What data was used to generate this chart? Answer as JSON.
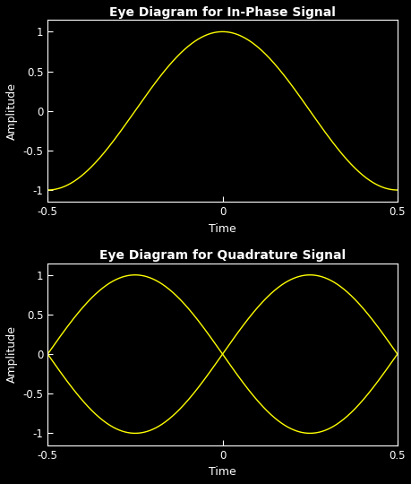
{
  "title1": "Eye Diagram for In-Phase Signal",
  "title2": "Eye Diagram for Quadrature Signal",
  "xlabel": "Time",
  "ylabel": "Amplitude",
  "xlim": [
    -0.5,
    0.5
  ],
  "ylim": [
    -1.15,
    1.15
  ],
  "xticks": [
    -0.5,
    0,
    0.5
  ],
  "yticks": [
    -1,
    -0.5,
    0,
    0.5,
    1
  ],
  "xtick_labels": [
    "-0.5",
    "0",
    "0.5"
  ],
  "ytick_labels": [
    "-1",
    "-0.5",
    "0",
    "0.5",
    "1"
  ],
  "line_color": "#ffff00",
  "bg_color": "#000000",
  "text_color": "#ffffff",
  "tick_color": "#ffffff",
  "spine_color": "#ffffff",
  "line_width": 1.0,
  "title_fontsize": 10,
  "label_fontsize": 9,
  "tick_fontsize": 8.5,
  "figsize": [
    4.6,
    5.4
  ],
  "dpi": 100
}
